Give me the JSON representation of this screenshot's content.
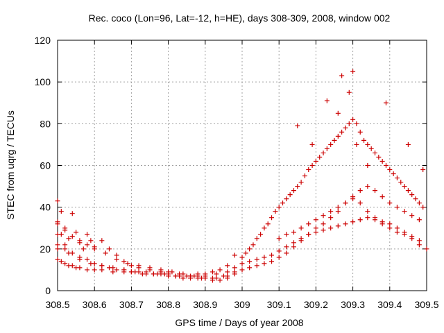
{
  "chart_data": {
    "type": "scatter",
    "title": "Rec. coco (Lon=96, Lat=-12, h=HE), days 308-309, 2008, window 002",
    "xlabel": "GPS time / Days of year 2008",
    "ylabel": "STEC from uqrg / TECUs",
    "xlim": [
      308.5,
      309.5
    ],
    "ylim": [
      0,
      120
    ],
    "xticks": [
      308.5,
      308.6,
      308.7,
      308.8,
      308.9,
      309.0,
      309.1,
      309.2,
      309.3,
      309.4,
      309.5
    ],
    "xtick_labels": [
      "308.5",
      "308.6",
      "308.7",
      "308.8",
      "308.9",
      "309",
      "309.1",
      "309.2",
      "309.3",
      "309.4",
      "309.5"
    ],
    "yticks": [
      0,
      20,
      40,
      60,
      80,
      100,
      120
    ],
    "ytick_labels": [
      "0",
      "20",
      "40",
      "60",
      "80",
      "100",
      "120"
    ],
    "grid": true,
    "marker": "+",
    "color": "#cc0000",
    "series": [
      {
        "name": "",
        "x": [
          308.5,
          308.5,
          308.5,
          308.51,
          308.51,
          308.52,
          308.52,
          308.53,
          308.54,
          308.55,
          308.56,
          308.57,
          308.58,
          308.59,
          308.6,
          308.62,
          308.64,
          308.66,
          308.68,
          308.7,
          308.72,
          308.75,
          308.78,
          308.8,
          308.83,
          308.86,
          308.88,
          308.9,
          308.92,
          308.94,
          308.96,
          308.98,
          308.5,
          308.51,
          308.52,
          308.53,
          308.54,
          308.55,
          308.56,
          308.58,
          308.6,
          308.62,
          308.65,
          308.68,
          308.7,
          308.73,
          308.76,
          308.79,
          308.82,
          308.85,
          308.88,
          308.9,
          308.93,
          308.96,
          308.98,
          308.5,
          308.52,
          308.54,
          308.56,
          308.58,
          308.6,
          308.62,
          308.64,
          308.66,
          308.68,
          308.7,
          308.72,
          308.74,
          308.76,
          308.78,
          308.8,
          308.82,
          308.84,
          308.86,
          308.88,
          308.9,
          308.92,
          308.94,
          308.96,
          308.98,
          308.5,
          308.52,
          308.54,
          308.56,
          308.58,
          308.6,
          308.63,
          308.66,
          308.69,
          308.72,
          308.75,
          308.78,
          308.81,
          308.84,
          308.87,
          308.9,
          308.93,
          308.96,
          308.5,
          308.53,
          308.56,
          308.59,
          308.62,
          308.65,
          308.68,
          308.71,
          308.74,
          308.77,
          308.8,
          308.83,
          308.86,
          308.89,
          308.92,
          308.95,
          308.98,
          309.0,
          309.01,
          309.02,
          309.03,
          309.04,
          309.05,
          309.06,
          309.07,
          309.08,
          309.09,
          309.1,
          309.11,
          309.12,
          309.13,
          309.14,
          309.15,
          309.16,
          309.17,
          309.18,
          309.19,
          309.2,
          309.21,
          309.22,
          309.23,
          309.24,
          309.25,
          309.26,
          309.27,
          309.28,
          309.29,
          309.3,
          309.31,
          309.32,
          309.33,
          309.34,
          309.35,
          309.36,
          309.37,
          309.38,
          309.39,
          309.4,
          309.41,
          309.42,
          309.43,
          309.44,
          309.45,
          309.46,
          309.47,
          309.48,
          309.49,
          309.0,
          309.02,
          309.04,
          309.06,
          309.08,
          309.1,
          309.12,
          309.14,
          309.16,
          309.18,
          309.2,
          309.22,
          309.24,
          309.26,
          309.28,
          309.3,
          309.32,
          309.34,
          309.36,
          309.38,
          309.4,
          309.42,
          309.44,
          309.46,
          309.48,
          309.0,
          309.02,
          309.04,
          309.06,
          309.08,
          309.1,
          309.12,
          309.14,
          309.16,
          309.18,
          309.2,
          309.22,
          309.24,
          309.26,
          309.28,
          309.3,
          309.32,
          309.34,
          309.36,
          309.38,
          309.4,
          309.42,
          309.44,
          309.46,
          309.48,
          309.1,
          309.12,
          309.14,
          309.16,
          309.18,
          309.2,
          309.22,
          309.24,
          309.26,
          309.28,
          309.3,
          309.32,
          309.34,
          309.36,
          309.38,
          309.4,
          309.42,
          309.44,
          309.46,
          309.48,
          309.15,
          309.19,
          309.23,
          309.27,
          309.29,
          309.3,
          309.39,
          309.31,
          309.26,
          309.34,
          309.45,
          309.49,
          309.5
        ],
        "y": [
          43,
          33,
          22,
          38,
          27,
          30,
          20,
          25,
          37,
          28,
          23,
          20,
          27,
          24,
          21,
          24,
          20,
          17,
          14,
          12,
          11,
          10,
          9,
          9,
          8,
          7,
          8,
          8,
          9,
          10,
          12,
          17,
          15,
          14,
          13,
          12,
          12,
          11,
          11,
          10,
          10,
          10,
          9,
          9,
          9,
          8,
          8,
          8,
          7,
          7,
          7,
          7,
          8,
          9,
          11,
          27,
          22,
          18,
          16,
          15,
          13,
          12,
          11,
          10,
          10,
          9,
          9,
          8,
          8,
          8,
          7,
          7,
          6,
          6,
          6,
          6,
          5,
          5,
          6,
          9,
          32,
          29,
          26,
          24,
          22,
          20,
          18,
          15,
          13,
          12,
          11,
          10,
          9,
          8,
          7,
          6,
          6,
          7,
          20,
          18,
          15,
          13,
          12,
          11,
          10,
          9,
          9,
          8,
          8,
          7,
          7,
          6,
          6,
          7,
          8,
          16,
          18,
          20,
          22,
          25,
          27,
          30,
          32,
          35,
          38,
          40,
          42,
          44,
          46,
          48,
          50,
          52,
          55,
          58,
          60,
          62,
          64,
          66,
          68,
          70,
          72,
          74,
          76,
          78,
          80,
          82,
          80,
          76,
          72,
          70,
          68,
          66,
          64,
          62,
          60,
          58,
          56,
          54,
          52,
          50,
          48,
          46,
          44,
          42,
          40,
          10,
          11,
          12,
          13,
          14,
          16,
          18,
          21,
          24,
          27,
          30,
          32,
          35,
          38,
          42,
          45,
          48,
          50,
          48,
          45,
          42,
          40,
          38,
          36,
          34,
          13,
          14,
          15,
          16,
          17,
          19,
          21,
          23,
          25,
          27,
          28,
          29,
          30,
          31,
          32,
          33,
          34,
          35,
          34,
          33,
          32,
          30,
          28,
          26,
          24,
          25,
          27,
          28,
          30,
          32,
          34,
          36,
          38,
          40,
          42,
          44,
          42,
          38,
          35,
          32,
          30,
          28,
          27,
          25,
          22,
          79,
          70,
          91,
          103,
          95,
          105,
          90,
          70,
          85,
          60,
          70,
          58,
          20
        ]
      }
    ]
  }
}
